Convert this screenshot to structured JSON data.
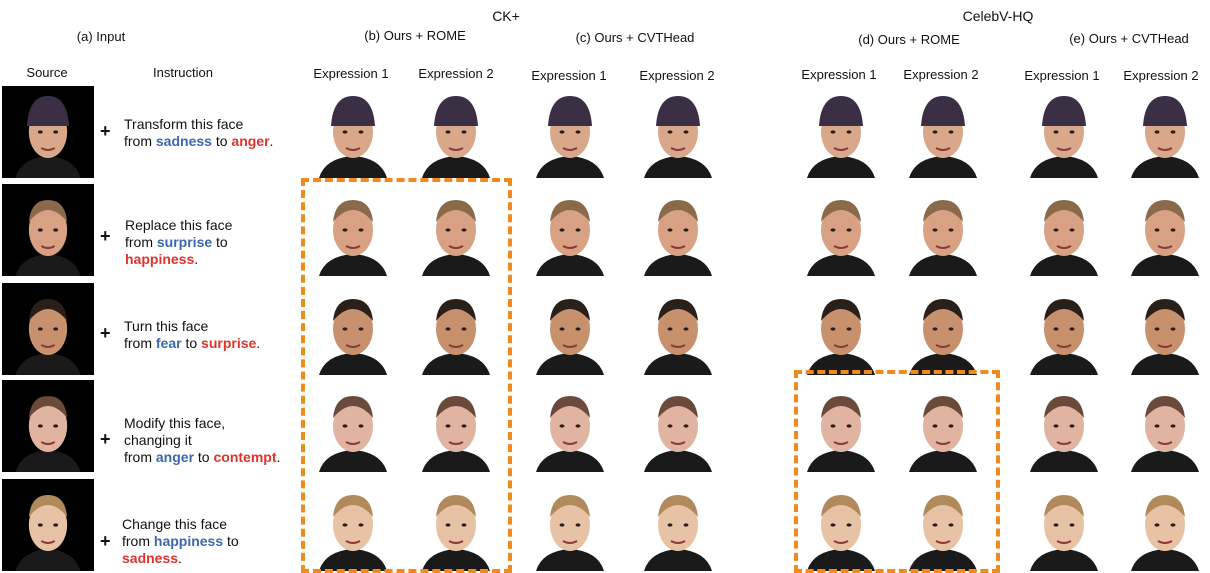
{
  "datasets": {
    "left": "CK+",
    "right": "CelebV-HQ"
  },
  "groups": {
    "input": "(a) Input",
    "b": "(b) Ours + ROME",
    "c": "(c) Ours + CVTHead",
    "d": "(d) Ours + ROME",
    "e": "(e) Ours + CVTHead"
  },
  "columns": {
    "source": "Source",
    "instruction": "Instruction",
    "expr1": "Expression 1",
    "expr2": "Expression 2"
  },
  "plus_sign": "+",
  "rows": [
    {
      "lines": [
        "Transform this face",
        "from"
      ],
      "from": "sadness",
      "mid": " to ",
      "to": "anger",
      "end": "."
    },
    {
      "lines": [
        "Replace this face",
        "from"
      ],
      "from": "surprise",
      "mid": " to",
      "to": "happiness",
      "end": "."
    },
    {
      "lines": [
        "Turn this face",
        "from"
      ],
      "from": "fear",
      "mid": " to ",
      "to": "surprise",
      "end": "."
    },
    {
      "lines": [
        "Modify this face,",
        "changing it",
        "from"
      ],
      "from": "anger",
      "mid": " to ",
      "to": "contempt",
      "end": "."
    },
    {
      "lines": [
        "Change this face",
        "from"
      ],
      "from": "happiness",
      "mid": " to",
      "to": "sadness",
      "end": "."
    }
  ],
  "colors": {
    "source_emotion": "#3c68b0",
    "target_emotion": "#e0332b",
    "highlight_box": "#f08a1d"
  }
}
